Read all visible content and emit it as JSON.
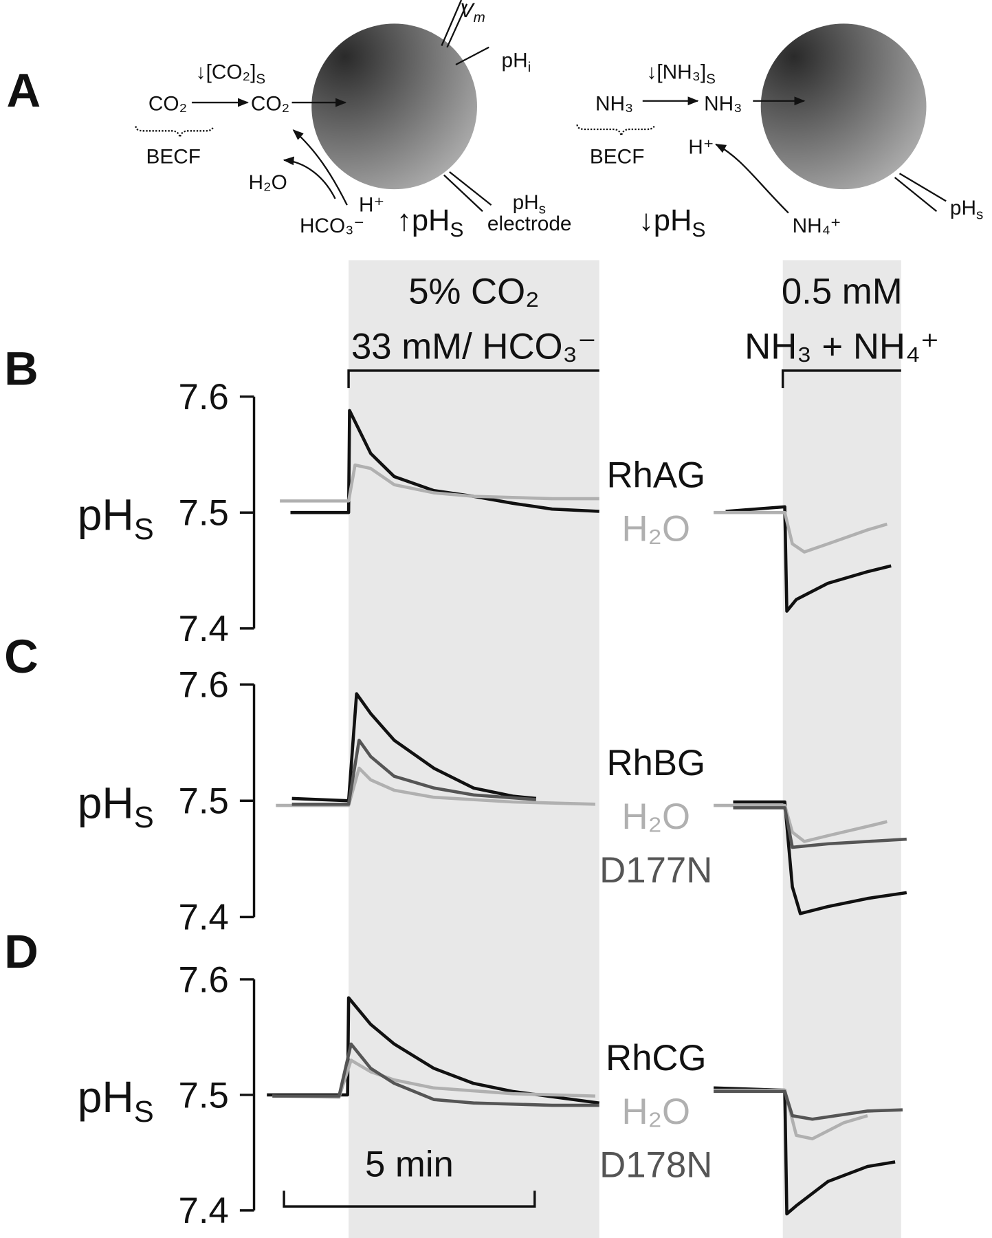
{
  "diagram": {
    "label": "A",
    "left": {
      "co2_s": {
        "text": "↓[CO₂]",
        "sub": "S"
      },
      "co2_out": "CO₂",
      "co2_in": "CO₂",
      "becf": "BECF",
      "h2o": "H₂O",
      "hco3": "HCO₃⁻",
      "h": "H⁺",
      "phs": {
        "text": "↑pH",
        "sub": "S"
      },
      "vm": {
        "text": "V",
        "sub": "m"
      },
      "phi": {
        "text": "pH",
        "sub": "i"
      },
      "electrode_ph": {
        "text": "pH",
        "sub": "s"
      },
      "electrode": "electrode"
    },
    "right": {
      "nh3_s": {
        "text": "↓[NH₃]",
        "sub": "S"
      },
      "nh3_out": "NH₃",
      "nh3_in": "NH₃",
      "becf": "BECF",
      "h": "H⁺",
      "phs": {
        "text": "↓pH",
        "sub": "S"
      },
      "nh4": "NH₄⁺",
      "electrode_ph": {
        "text": "pH",
        "sub": "s"
      }
    }
  },
  "protocol": [
    {
      "lines": [
        "5% CO₂",
        "33 mM/ HCO₃⁻"
      ],
      "start": 1.76,
      "end": 6.76
    },
    {
      "lines": [
        "0.5 mM",
        "NH₃ + NH₄⁺"
      ],
      "start": 10.42,
      "end": 12.78
    }
  ],
  "scale_bar": {
    "label": "5 min",
    "length": 5
  },
  "chart_data": [
    {
      "type": "line",
      "panel": "B",
      "ylabel": {
        "text": "pH",
        "sub": "S"
      },
      "xlim": [
        0,
        13
      ],
      "ylim": [
        7.4,
        7.6
      ],
      "yticks": [
        7.4,
        7.5,
        7.6
      ],
      "series": [
        {
          "name": "RhAG",
          "color": "#111111",
          "x": [
            0.6,
            1.76,
            1.78,
            2.2,
            2.67,
            3.46,
            4.25,
            5.03,
            5.82,
            6.76,
            null,
            9.28,
            10.46,
            10.5,
            10.69,
            11.32,
            12.11,
            12.58
          ],
          "values": [
            7.5,
            7.5,
            7.588,
            7.551,
            7.531,
            7.519,
            7.514,
            7.508,
            7.503,
            7.501,
            null,
            7.501,
            7.505,
            7.415,
            7.425,
            7.439,
            7.449,
            7.454
          ]
        },
        {
          "name": "H₂O",
          "color": "#b0b0b0",
          "x": [
            0.39,
            1.76,
            1.89,
            2.2,
            2.67,
            3.46,
            4.25,
            5.82,
            6.76,
            null,
            9.04,
            10.46,
            10.61,
            10.85,
            11.32,
            12.11,
            12.5
          ],
          "values": [
            7.51,
            7.51,
            7.541,
            7.538,
            7.524,
            7.517,
            7.514,
            7.512,
            7.512,
            null,
            7.5,
            7.5,
            7.473,
            7.466,
            7.473,
            7.485,
            7.49
          ]
        }
      ]
    },
    {
      "type": "line",
      "panel": "C",
      "ylabel": {
        "text": "pH",
        "sub": "S"
      },
      "xlim": [
        0,
        13
      ],
      "ylim": [
        7.4,
        7.6
      ],
      "yticks": [
        7.4,
        7.5,
        7.6
      ],
      "series": [
        {
          "name": "RhBG",
          "color": "#111111",
          "x": [
            0.63,
            1.76,
            1.92,
            2.2,
            2.67,
            3.46,
            4.25,
            5.03,
            5.5,
            null,
            9.43,
            10.46,
            10.61,
            10.77,
            11.32,
            12.11,
            12.89
          ],
          "values": [
            7.502,
            7.5,
            7.592,
            7.575,
            7.552,
            7.528,
            7.511,
            7.504,
            7.502,
            null,
            7.499,
            7.499,
            7.426,
            7.403,
            7.409,
            7.416,
            7.421
          ]
        },
        {
          "name": "H₂O",
          "color": "#b0b0b0",
          "x": [
            0.31,
            1.76,
            1.97,
            2.2,
            2.67,
            3.46,
            5.03,
            6.68,
            null,
            9.04,
            10.46,
            10.61,
            10.85,
            11.32,
            12.11,
            12.5
          ],
          "values": [
            7.496,
            7.496,
            7.528,
            7.518,
            7.509,
            7.503,
            7.499,
            7.497,
            null,
            7.496,
            7.496,
            7.473,
            7.465,
            7.47,
            7.478,
            7.482
          ]
        },
        {
          "name": "D177N",
          "color": "#555555",
          "x": [
            0.63,
            1.76,
            1.97,
            2.2,
            2.67,
            3.46,
            4.25,
            5.5,
            null,
            9.43,
            10.46,
            10.61,
            11.32,
            12.89
          ],
          "values": [
            7.497,
            7.497,
            7.552,
            7.538,
            7.521,
            7.511,
            7.505,
            7.501,
            null,
            7.494,
            7.494,
            7.46,
            7.463,
            7.467
          ]
        }
      ]
    },
    {
      "type": "line",
      "panel": "D",
      "ylabel": {
        "text": "pH",
        "sub": "S"
      },
      "xlim": [
        0,
        13
      ],
      "ylim": [
        7.4,
        7.6
      ],
      "yticks": [
        7.4,
        7.5,
        7.6
      ],
      "series": [
        {
          "name": "RhCG",
          "color": "#111111",
          "x": [
            0.13,
            1.57,
            1.74,
            1.76,
            2.2,
            2.67,
            3.46,
            4.25,
            5.03,
            6.76,
            null,
            9.04,
            10.46,
            10.5,
            10.69,
            11.32,
            12.11,
            12.66
          ],
          "values": [
            7.5,
            7.5,
            7.5,
            7.584,
            7.561,
            7.544,
            7.523,
            7.51,
            7.503,
            7.493,
            null,
            7.506,
            7.504,
            7.397,
            7.404,
            7.425,
            7.438,
            7.442
          ]
        },
        {
          "name": "H₂O",
          "color": "#b0b0b0",
          "x": [
            0.24,
            1.57,
            1.81,
            2.2,
            2.67,
            3.46,
            5.03,
            6.68,
            null,
            9.04,
            10.46,
            10.69,
            11.01,
            11.64,
            12.11
          ],
          "values": [
            7.499,
            7.498,
            7.53,
            7.52,
            7.513,
            7.506,
            7.501,
            7.499,
            null,
            7.504,
            7.504,
            7.465,
            7.462,
            7.476,
            7.482
          ]
        },
        {
          "name": "D178N",
          "color": "#555555",
          "x": [
            0.24,
            1.57,
            1.81,
            2.2,
            2.67,
            3.46,
            4.25,
            5.82,
            6.76,
            null,
            9.04,
            10.46,
            10.61,
            11.01,
            12.11,
            12.81
          ],
          "values": [
            7.499,
            7.499,
            7.544,
            7.523,
            7.51,
            7.496,
            7.493,
            7.491,
            7.491,
            null,
            7.503,
            7.503,
            7.482,
            7.479,
            7.486,
            7.487
          ]
        }
      ]
    }
  ]
}
